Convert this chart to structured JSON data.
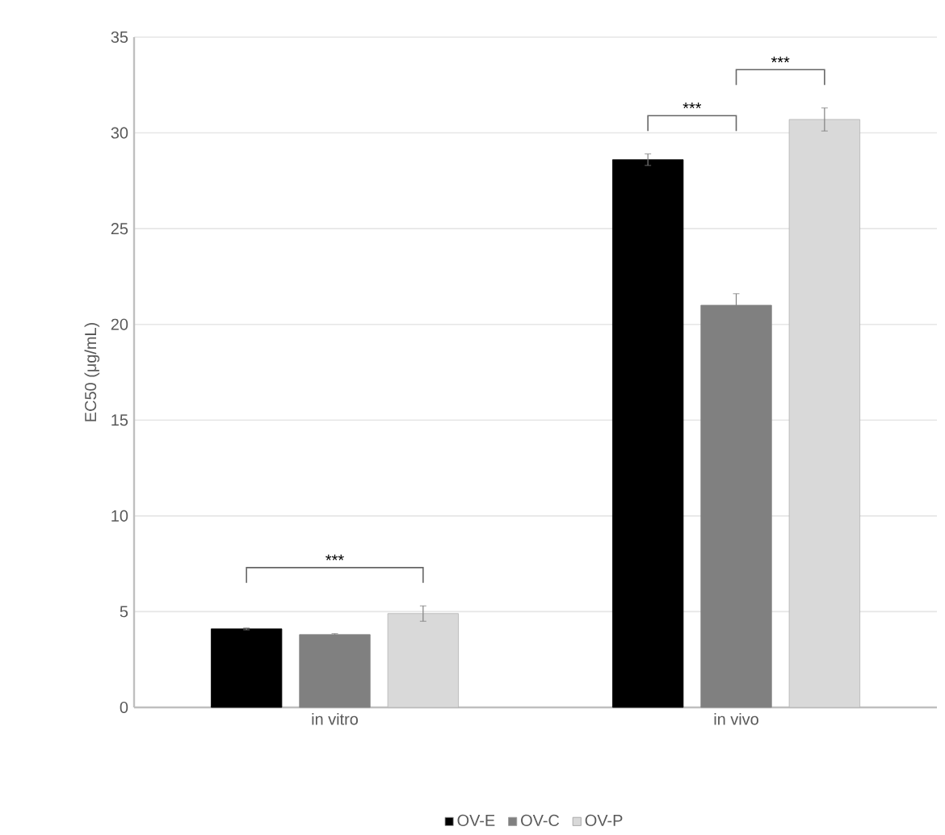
{
  "chart_data": {
    "type": "bar",
    "ylabel": "EC50 (μg/mL)",
    "categories": [
      "in vitro",
      "in vivo"
    ],
    "series": [
      {
        "name": "OV-E",
        "color": "#000000",
        "values": [
          4.1,
          28.6
        ],
        "errors": [
          0.05,
          0.3
        ]
      },
      {
        "name": "OV-C",
        "color": "#808080",
        "values": [
          3.8,
          21.0
        ],
        "errors": [
          0.05,
          0.6
        ]
      },
      {
        "name": "OV-P",
        "color": "#d9d9d9",
        "values": [
          4.9,
          30.7
        ],
        "errors": [
          0.4,
          0.6
        ]
      }
    ],
    "ylim": [
      0,
      35
    ],
    "yticks": [
      0,
      5,
      10,
      15,
      20,
      25,
      30,
      35
    ],
    "grid": "y",
    "legend": "bottom",
    "annotations": [
      "***",
      "***",
      "***"
    ]
  }
}
